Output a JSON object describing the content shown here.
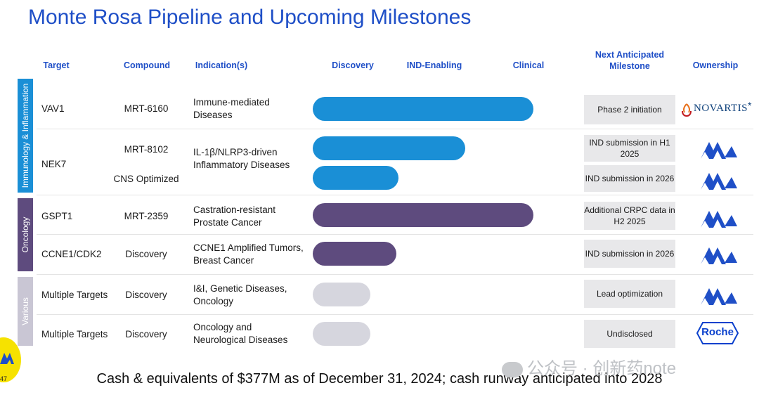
{
  "title": "Monte Rosa Pipeline and Upcoming Milestones",
  "headers": {
    "target": "Target",
    "compound": "Compound",
    "indication": "Indication(s)",
    "discovery": "Discovery",
    "ind_enabling": "IND-Enabling",
    "clinical": "Clinical",
    "milestone": "Next Anticipated Milestone",
    "ownership": "Ownership"
  },
  "groups": [
    {
      "label": "Immunology & Inflammation",
      "color": "#1a8fd6"
    },
    {
      "label": "Oncology",
      "color": "#5e4b7e"
    },
    {
      "label": "Various",
      "color": "#c9c6d4"
    }
  ],
  "rows": [
    {
      "target": "VAV1",
      "compound": "MRT-6160",
      "indication": "Immune-mediated Diseases",
      "milestone": "Phase 2 initiation",
      "ownership": "NOVARTIS",
      "progress": 1.0
    },
    {
      "target": "NEK7",
      "compound": "MRT-8102",
      "indication": "IL-1β/NLRP3-driven Inflammatory Diseases",
      "milestone": "IND submission in H1 2025",
      "ownership": "Monte Rosa",
      "progress": 0.69
    },
    {
      "target": "",
      "compound": "CNS Optimized",
      "indication": "",
      "milestone": "IND submission in 2026",
      "ownership": "Monte Rosa",
      "progress": 0.39
    },
    {
      "target": "GSPT1",
      "compound": "MRT-2359",
      "indication": "Castration-resistant Prostate Cancer",
      "milestone": "Additional CRPC data in H2 2025",
      "ownership": "Monte Rosa",
      "progress": 1.0
    },
    {
      "target": "CCNE1/CDK2",
      "compound": "Discovery",
      "indication": "CCNE1 Amplified Tumors, Breast Cancer",
      "milestone": "IND submission in 2026",
      "ownership": "Monte Rosa",
      "progress": 0.38
    },
    {
      "target": "Multiple Targets",
      "compound": "Discovery",
      "indication": "I&I, Genetic Diseases, Oncology",
      "milestone": "Lead optimization",
      "ownership": "Monte Rosa",
      "progress": 0.26
    },
    {
      "target": "Multiple Targets",
      "compound": "Discovery",
      "indication": "Oncology and Neurological Diseases",
      "milestone": "Undisclosed",
      "ownership": "Roche",
      "progress": 0.26
    }
  ],
  "novartis_mark": "*",
  "footer": "Cash & equivalents of $377M as of December 31, 2024; cash runway anticipated into 2028",
  "watermark": "公众号 · 创新药note",
  "page_number": "47",
  "colors": {
    "blue": "#1a8fd6",
    "purple": "#5e4b7e",
    "grey": "#d6d6de",
    "title": "#1f4fc7"
  }
}
